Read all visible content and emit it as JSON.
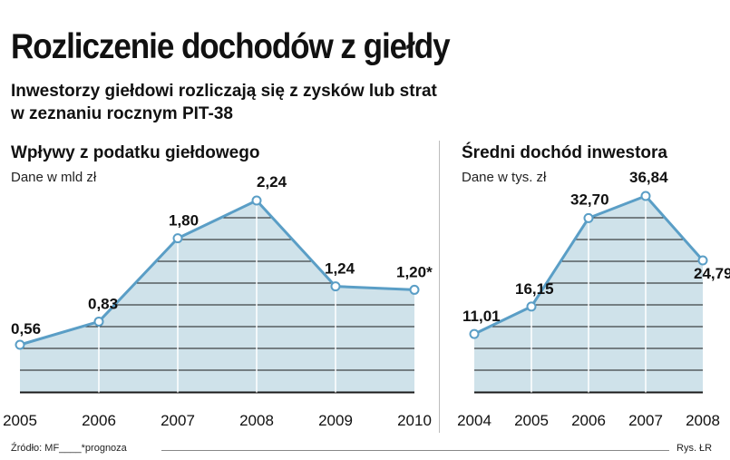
{
  "title": "Rozliczenie dochodów z giełdy",
  "subtitle_line1": "Inwestorzy giełdowi rozliczają się z zysków lub strat",
  "subtitle_line2": "w zeznaniu rocznym PIT-38",
  "source": "Źródło: MF____*prognoza",
  "credit": "Rys. ŁR",
  "colors": {
    "line": "#5a9ec6",
    "fill": "#cfe2ea",
    "grid": "#1a1a1a",
    "marker_fill": "#ffffff"
  },
  "chart_data": [
    {
      "type": "area",
      "title": "Wpływy z podatku giełdowego",
      "unit": "Dane w mld zł",
      "categories": [
        "2005",
        "2006",
        "2007",
        "2008",
        "2009",
        "2010"
      ],
      "values": [
        0.56,
        0.83,
        1.8,
        2.24,
        1.24,
        1.2
      ],
      "value_labels": [
        "0,56",
        "0,83",
        "1,80",
        "2,24",
        "1,24",
        "1,20*"
      ],
      "grid": true,
      "legend": "none"
    },
    {
      "type": "area",
      "title": "Średni dochód inwestora",
      "unit": "Dane w tys. zł",
      "categories": [
        "2004",
        "2005",
        "2006",
        "2007",
        "2008"
      ],
      "values": [
        11.01,
        16.15,
        32.7,
        36.84,
        24.79
      ],
      "value_labels": [
        "11,01",
        "16,15",
        "32,70",
        "36,84",
        "24,79"
      ],
      "grid": true,
      "legend": "none"
    }
  ]
}
